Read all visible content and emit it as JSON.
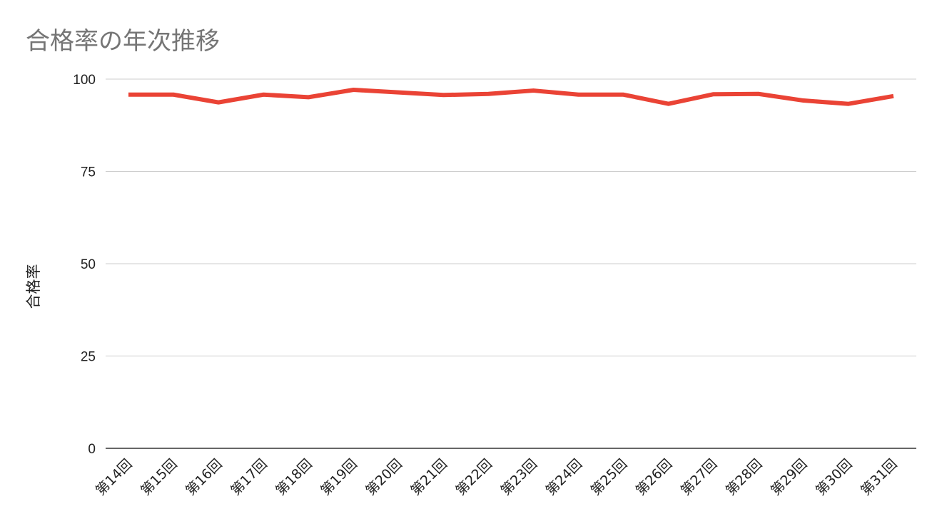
{
  "chart_data": {
    "type": "line",
    "title": "合格率の年次推移",
    "xlabel": "",
    "ylabel": "合格率",
    "ylim": [
      0,
      100
    ],
    "yticks": [
      0,
      25,
      50,
      75,
      100
    ],
    "grid": true,
    "legend": "none",
    "categories": [
      "第14回",
      "第15回",
      "第16回",
      "第17回",
      "第18回",
      "第19回",
      "第20回",
      "第21回",
      "第22回",
      "第23回",
      "第24回",
      "第25回",
      "第26回",
      "第27回",
      "第28回",
      "第29回",
      "第30回",
      "第31回"
    ],
    "series": [
      {
        "color": "#ea4335",
        "values": [
          95.8,
          95.8,
          93.7,
          95.8,
          95.1,
          97.1,
          96.4,
          95.7,
          96.0,
          96.9,
          95.8,
          95.8,
          93.3,
          95.9,
          96.0,
          94.2,
          93.3,
          95.4
        ]
      }
    ]
  }
}
